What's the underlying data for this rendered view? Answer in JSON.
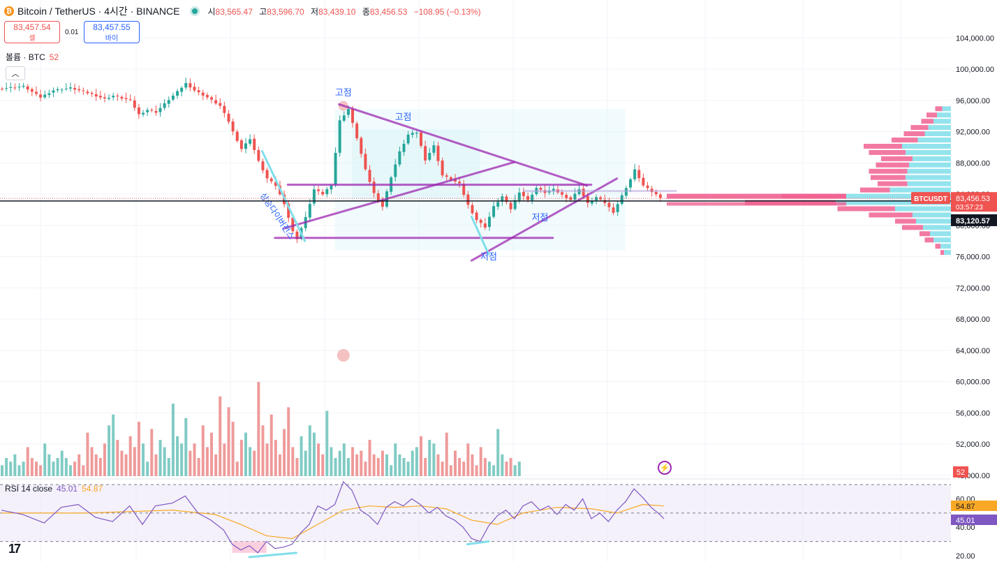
{
  "header": {
    "symbol": "Bitcoin / TetherUS · 4시간 · BINANCE",
    "coin_icon": "bitcoin-icon",
    "ohlc": [
      {
        "label": "시",
        "value": "83,565.47"
      },
      {
        "label": "고",
        "value": "83,596.70"
      },
      {
        "label": "저",
        "value": "83,439.10"
      },
      {
        "label": "종",
        "value": "83,456.53"
      }
    ],
    "change": "−108.95 (−0.13%)"
  },
  "trade": {
    "sell_price": "83,457.54",
    "sell_label": "셀",
    "spread": "0.01",
    "buy_price": "83,457.55",
    "buy_label": "바이"
  },
  "volume_legend": {
    "label": "볼륨 · BTC",
    "value": "52"
  },
  "rsi_legend": {
    "label": "RSI 14 close",
    "rsi": "45.01",
    "ma": "54.87"
  },
  "colors": {
    "up": "#26a69a",
    "down": "#ef5350",
    "drawing": "#9c27b0",
    "rsi": "#7e57c2",
    "rsi_ma": "#f9a825"
  },
  "chart_data": {
    "type": "candlestick",
    "symbol": "BTCUSDT",
    "price_axis": {
      "ticks": [
        {
          "v": 104000,
          "label": "104,000.00"
        },
        {
          "v": 100000,
          "label": "100,000.00"
        },
        {
          "v": 96000,
          "label": "96,000.00"
        },
        {
          "v": 92000,
          "label": "92,000.00"
        },
        {
          "v": 88000,
          "label": "88,000.00"
        },
        {
          "v": 84000,
          "label": "84,000.00"
        },
        {
          "v": 80000,
          "label": "80,000.00"
        },
        {
          "v": 76000,
          "label": "76,000.00"
        },
        {
          "v": 72000,
          "label": "72,000.00"
        },
        {
          "v": 68000,
          "label": "68,000.00"
        },
        {
          "v": 64000,
          "label": "64,000.00"
        },
        {
          "v": 60000,
          "label": "60,000.00"
        },
        {
          "v": 56000,
          "label": "56,000.00"
        },
        {
          "v": 52000,
          "label": "52,000.00"
        },
        {
          "v": 48000,
          "label": "48,000.00"
        }
      ],
      "range": [
        44500,
        108500
      ]
    },
    "last_price": {
      "symbol_label": "BTCUSDT",
      "price": "83,456.53",
      "countdown": "03:57:23",
      "value": 83456.53
    },
    "crosshair_price": {
      "label": "83,120.57",
      "value": 83120.57
    },
    "volume_badge": "52",
    "price_path": [
      [
        0,
        97500
      ],
      [
        6,
        97800
      ],
      [
        10,
        96400
      ],
      [
        13,
        97300
      ],
      [
        17,
        97600
      ],
      [
        22,
        96800
      ],
      [
        25,
        96200
      ],
      [
        27,
        96600
      ],
      [
        31,
        96000
      ],
      [
        33,
        94200
      ],
      [
        35,
        94800
      ],
      [
        37,
        94500
      ],
      [
        40,
        96100
      ],
      [
        42,
        97100
      ],
      [
        44,
        98200
      ],
      [
        46,
        97300
      ],
      [
        49,
        96400
      ],
      [
        52,
        95300
      ],
      [
        54,
        93300
      ],
      [
        55,
        92000
      ],
      [
        57,
        89800
      ],
      [
        59,
        91100
      ],
      [
        61,
        88200
      ],
      [
        63,
        86000
      ],
      [
        65,
        85100
      ],
      [
        67,
        82800
      ],
      [
        69,
        79200
      ],
      [
        70,
        78300
      ],
      [
        72,
        81000
      ],
      [
        74,
        84600
      ],
      [
        76,
        84000
      ],
      [
        78,
        85200
      ],
      [
        80,
        93400
      ],
      [
        82,
        94900
      ],
      [
        84,
        91200
      ],
      [
        86,
        87100
      ],
      [
        88,
        84100
      ],
      [
        90,
        82400
      ],
      [
        92,
        86200
      ],
      [
        94,
        89400
      ],
      [
        96,
        91600
      ],
      [
        98,
        91900
      ],
      [
        100,
        88400
      ],
      [
        102,
        90200
      ],
      [
        104,
        86400
      ],
      [
        106,
        85900
      ],
      [
        108,
        85300
      ],
      [
        110,
        82600
      ],
      [
        112,
        80700
      ],
      [
        114,
        79800
      ],
      [
        116,
        82400
      ],
      [
        118,
        83700
      ],
      [
        120,
        82100
      ],
      [
        122,
        84300
      ],
      [
        124,
        83200
      ],
      [
        126,
        84800
      ],
      [
        128,
        84200
      ],
      [
        130,
        84600
      ],
      [
        132,
        83900
      ],
      [
        134,
        83300
      ],
      [
        136,
        84700
      ],
      [
        138,
        82800
      ],
      [
        140,
        83600
      ],
      [
        142,
        82900
      ],
      [
        144,
        81700
      ],
      [
        146,
        83800
      ],
      [
        148,
        85900
      ],
      [
        149,
        87100
      ],
      [
        151,
        85100
      ],
      [
        153,
        84300
      ],
      [
        155,
        83600
      ]
    ],
    "volumes": [
      3,
      5,
      4,
      6,
      3,
      4,
      8,
      5,
      4,
      3,
      9,
      6,
      4,
      5,
      7,
      5,
      3,
      4,
      6,
      3,
      12,
      8,
      6,
      5,
      9,
      14,
      17,
      10,
      7,
      6,
      11,
      8,
      15,
      9,
      4,
      13,
      6,
      10,
      8,
      5,
      20,
      11,
      9,
      16,
      7,
      9,
      5,
      14,
      8,
      12,
      6,
      22,
      9,
      19,
      15,
      4,
      10,
      12,
      8,
      7,
      26,
      14,
      9,
      17,
      10,
      6,
      13,
      19,
      8,
      5,
      11,
      7,
      14,
      12,
      9,
      6,
      18,
      8,
      5,
      7,
      9,
      5,
      8,
      6,
      7,
      4,
      10,
      6,
      5,
      7,
      6,
      3,
      9,
      6,
      5,
      4,
      7,
      8,
      11,
      5,
      10,
      9,
      6,
      4,
      12,
      3,
      7,
      5,
      4,
      9,
      6,
      3,
      8,
      5,
      4,
      3,
      13,
      6,
      4,
      5,
      3,
      4
    ],
    "rsi": {
      "ticks": [
        {
          "v": 60,
          "label": "60.00"
        },
        {
          "v": 40,
          "label": "40.00"
        },
        {
          "v": 20,
          "label": "20.00"
        }
      ],
      "range": [
        18,
        74
      ],
      "bands": [
        70,
        50,
        30
      ],
      "path": [
        [
          0,
          52
        ],
        [
          5,
          49
        ],
        [
          10,
          43
        ],
        [
          14,
          54
        ],
        [
          18,
          56
        ],
        [
          22,
          47
        ],
        [
          26,
          44
        ],
        [
          30,
          55
        ],
        [
          33,
          42
        ],
        [
          36,
          55
        ],
        [
          40,
          57
        ],
        [
          43,
          62
        ],
        [
          46,
          50
        ],
        [
          49,
          45
        ],
        [
          52,
          38
        ],
        [
          54,
          28
        ],
        [
          56,
          24
        ],
        [
          58,
          27
        ],
        [
          60,
          22
        ],
        [
          62,
          30
        ],
        [
          64,
          25
        ],
        [
          66,
          26
        ],
        [
          68,
          28
        ],
        [
          70,
          36
        ],
        [
          72,
          42
        ],
        [
          74,
          55
        ],
        [
          76,
          52
        ],
        [
          78,
          56
        ],
        [
          80,
          72
        ],
        [
          82,
          66
        ],
        [
          84,
          52
        ],
        [
          86,
          48
        ],
        [
          88,
          42
        ],
        [
          90,
          54
        ],
        [
          92,
          58
        ],
        [
          94,
          55
        ],
        [
          96,
          60
        ],
        [
          98,
          56
        ],
        [
          100,
          50
        ],
        [
          102,
          54
        ],
        [
          104,
          48
        ],
        [
          106,
          45
        ],
        [
          108,
          40
        ],
        [
          110,
          32
        ],
        [
          112,
          30
        ],
        [
          114,
          41
        ],
        [
          116,
          48
        ],
        [
          118,
          52
        ],
        [
          120,
          46
        ],
        [
          122,
          55
        ],
        [
          124,
          58
        ],
        [
          126,
          52
        ],
        [
          128,
          55
        ],
        [
          130,
          49
        ],
        [
          132,
          56
        ],
        [
          134,
          52
        ],
        [
          136,
          60
        ],
        [
          138,
          46
        ],
        [
          140,
          50
        ],
        [
          142,
          44
        ],
        [
          144,
          52
        ],
        [
          146,
          58
        ],
        [
          148,
          67
        ],
        [
          150,
          61
        ],
        [
          152,
          54
        ],
        [
          154,
          49
        ],
        [
          155,
          46
        ]
      ],
      "ma_path": [
        [
          0,
          50
        ],
        [
          20,
          50
        ],
        [
          40,
          52
        ],
        [
          50,
          49
        ],
        [
          56,
          42
        ],
        [
          62,
          34
        ],
        [
          68,
          32
        ],
        [
          74,
          42
        ],
        [
          80,
          52
        ],
        [
          86,
          55
        ],
        [
          92,
          54
        ],
        [
          98,
          55
        ],
        [
          104,
          53
        ],
        [
          110,
          45
        ],
        [
          116,
          42
        ],
        [
          122,
          50
        ],
        [
          130,
          54
        ],
        [
          138,
          53
        ],
        [
          144,
          50
        ],
        [
          150,
          56
        ],
        [
          155,
          55
        ]
      ]
    },
    "annotations": [
      {
        "text": "고점",
        "x": 80,
        "price": 96600
      },
      {
        "text": "고점",
        "x": 94,
        "price": 93500
      },
      {
        "text": "저점",
        "x": 126,
        "price": 80600
      },
      {
        "text": "저점",
        "x": 114,
        "price": 75600
      },
      {
        "text": "상승다이버전스",
        "x": 64,
        "price": 81000,
        "angle": 56
      }
    ],
    "trend_lines": [
      [
        [
          79,
          95500
        ],
        [
          137,
          85100
        ]
      ],
      [
        [
          66,
          79600
        ],
        [
          120,
          88100
        ]
      ],
      [
        [
          67,
          85200
        ],
        [
          138,
          85200
        ]
      ],
      [
        [
          64,
          78400
        ],
        [
          129,
          78400
        ]
      ],
      [
        [
          110,
          75500
        ],
        [
          144,
          86000
        ]
      ]
    ],
    "divergence_lines": [
      [
        [
          61,
          89500
        ],
        [
          71,
          78000
        ]
      ],
      [
        [
          110,
          81100
        ],
        [
          114,
          76300
        ]
      ]
    ],
    "rsi_divergence_lines": [
      [
        [
          58,
          19
        ],
        [
          69,
          22
        ]
      ],
      [
        [
          109,
          28
        ],
        [
          114,
          30
        ]
      ]
    ],
    "volume_profile": [
      {
        "price": 94800,
        "up": 5,
        "down": 4
      },
      {
        "price": 94000,
        "up": 8,
        "down": 6
      },
      {
        "price": 93200,
        "up": 10,
        "down": 7
      },
      {
        "price": 92400,
        "up": 13,
        "down": 10
      },
      {
        "price": 91600,
        "up": 15,
        "down": 12
      },
      {
        "price": 90800,
        "up": 19,
        "down": 15
      },
      {
        "price": 90000,
        "up": 28,
        "down": 22
      },
      {
        "price": 89200,
        "up": 26,
        "down": 21
      },
      {
        "price": 88400,
        "up": 22,
        "down": 18
      },
      {
        "price": 87600,
        "up": 24,
        "down": 19
      },
      {
        "price": 86800,
        "up": 25,
        "down": 22
      },
      {
        "price": 86000,
        "up": 26,
        "down": 20
      },
      {
        "price": 85200,
        "up": 25,
        "down": 17
      },
      {
        "price": 84400,
        "up": 35,
        "down": 17
      },
      {
        "price": 83600,
        "up": 60,
        "down": 37
      },
      {
        "price": 82800,
        "up": 66,
        "down": 52
      },
      {
        "price": 82000,
        "up": 32,
        "down": 33
      },
      {
        "price": 81200,
        "up": 22,
        "down": 25
      },
      {
        "price": 80400,
        "up": 20,
        "down": 12
      },
      {
        "price": 79600,
        "up": 16,
        "down": 12
      },
      {
        "price": 78800,
        "up": 12,
        "down": 6
      },
      {
        "price": 78000,
        "up": 10,
        "down": 5
      },
      {
        "price": 77200,
        "up": 6,
        "down": 3
      },
      {
        "price": 76400,
        "up": 4,
        "down": 2
      }
    ]
  }
}
